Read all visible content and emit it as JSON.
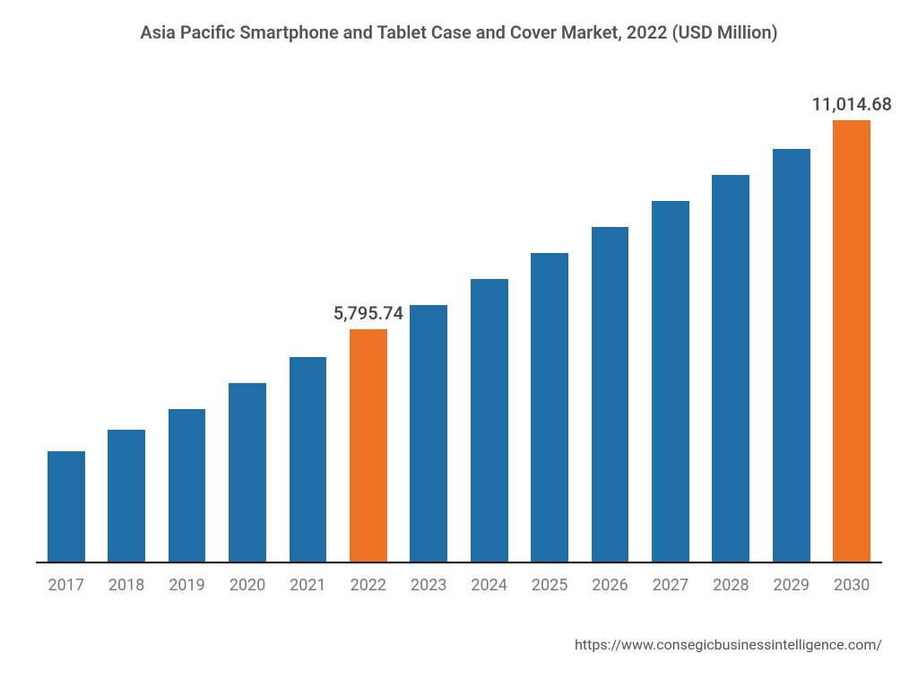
{
  "chart": {
    "type": "bar",
    "title": "Asia Pacific Smartphone and Tablet Case and Cover Market, 2022 (USD Million)",
    "title_color": "#555555",
    "title_fontsize": 20,
    "categories": [
      "2017",
      "2018",
      "2019",
      "2020",
      "2021",
      "2022",
      "2023",
      "2024",
      "2025",
      "2026",
      "2027",
      "2028",
      "2029",
      "2030"
    ],
    "values": [
      2750,
      3300,
      3800,
      4450,
      5100,
      5795.74,
      6400,
      7050,
      7700,
      8350,
      9000,
      9650,
      10300,
      11014.68
    ],
    "y_max": 12000,
    "bar_colors": [
      "#1f6ea8",
      "#1f6ea8",
      "#1f6ea8",
      "#1f6ea8",
      "#1f6ea8",
      "#ec7424",
      "#1f6ea8",
      "#1f6ea8",
      "#1f6ea8",
      "#1f6ea8",
      "#1f6ea8",
      "#1f6ea8",
      "#1f6ea8",
      "#ec7424"
    ],
    "value_labels": {
      "5": "5,795.74",
      "13": "11,014.68"
    },
    "value_label_color": "#444444",
    "value_label_fontsize": 20,
    "axis_tick_color": "#777777",
    "axis_tick_fontsize": 18,
    "background_color": "#ffffff",
    "axis_line_color": "#000000"
  },
  "footer": {
    "url_text": "https://www.consegicbusinessintelligence.com/",
    "color": "#555555",
    "fontsize": 16
  }
}
